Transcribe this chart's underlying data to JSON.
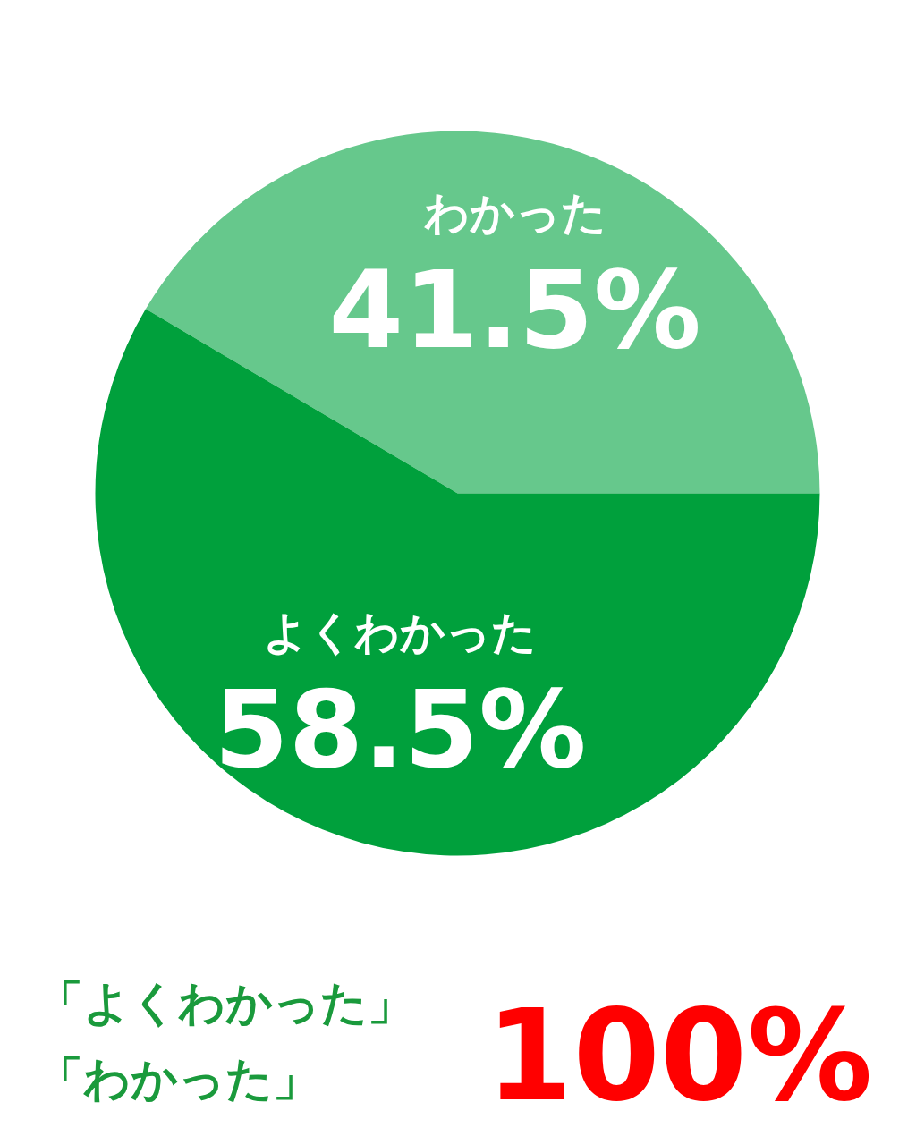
{
  "chart_data": {
    "type": "pie",
    "categories": [
      "わかった",
      "よくわかった"
    ],
    "values": [
      41.5,
      58.5
    ],
    "colors": [
      "#66c88c",
      "#00a03c"
    ],
    "value_labels": [
      "41.5%",
      "58.5%"
    ],
    "annotations": [
      "「よくわかった」",
      "「わかった」",
      "100%"
    ]
  }
}
